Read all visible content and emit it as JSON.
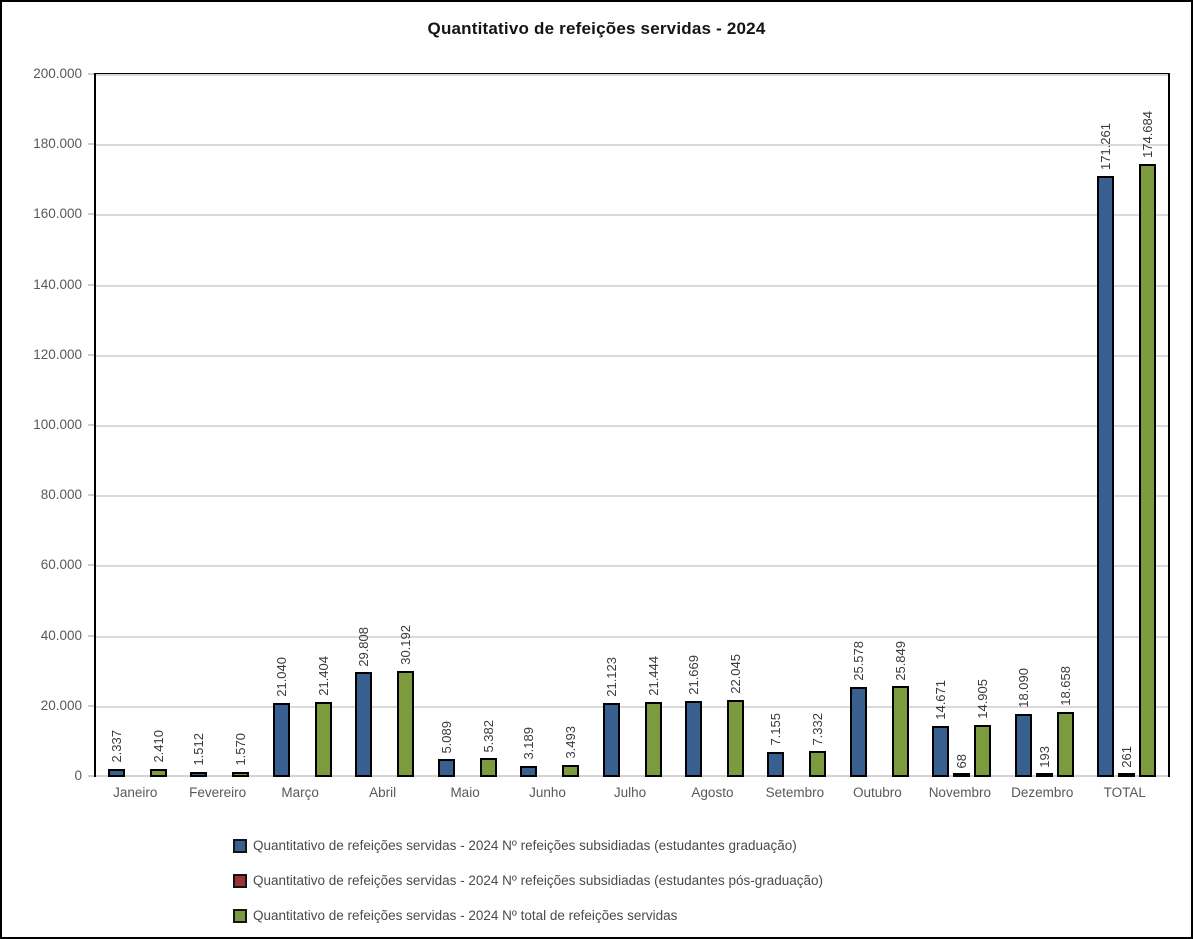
{
  "title": "Quantitativo de refeições servidas - 2024",
  "chart_data": {
    "type": "bar",
    "title": "Quantitativo de refeições servidas - 2024",
    "categories": [
      "Janeiro",
      "Fevereiro",
      "Março",
      "Abril",
      "Maio",
      "Junho",
      "Julho",
      "Agosto",
      "Setembro",
      "Outubro",
      "Novembro",
      "Dezembro",
      "TOTAL"
    ],
    "series": [
      {
        "name": "Quantitativo de refeições servidas - 2024 Nº refeições subsidiadas (estudantes graduação)",
        "key": "refeicoes-subsidiadas-graduacao",
        "color": "#376091",
        "values": [
          2337,
          1512,
          21040,
          29808,
          5089,
          3189,
          21123,
          21669,
          7155,
          25578,
          14671,
          18090,
          171261
        ],
        "labels": [
          "2.337",
          "1.512",
          "21.040",
          "29.808",
          "5.089",
          "3.189",
          "21.123",
          "21.669",
          "7.155",
          "25.578",
          "14.671",
          "18.090",
          "171.261"
        ]
      },
      {
        "name": "Quantitativo de refeições servidas - 2024 Nº refeições subsidiadas (estudantes pós-graduação)",
        "key": "refeicoes-subsidiadas-pos-graduacao",
        "color": "#963634",
        "values": [
          null,
          null,
          null,
          null,
          null,
          null,
          null,
          null,
          null,
          null,
          68,
          193,
          261
        ],
        "labels": [
          "",
          "",
          "",
          "",
          "",
          "",
          "",
          "",
          "",
          "",
          "68",
          "193",
          "261"
        ]
      },
      {
        "name": "Quantitativo de refeições servidas - 2024 Nº total de refeições servidas",
        "key": "total-refeicoes-servidas",
        "color": "#7c9a3e",
        "values": [
          2410,
          1570,
          21404,
          30192,
          5382,
          3493,
          21444,
          22045,
          7332,
          25849,
          14905,
          18658,
          174684
        ],
        "labels": [
          "2.410",
          "1.570",
          "21.404",
          "30.192",
          "5.382",
          "3.493",
          "21.444",
          "22.045",
          "7.332",
          "25.849",
          "14.905",
          "18.658",
          "174.684"
        ]
      }
    ],
    "ylim": [
      0,
      200000
    ],
    "ytick_step": 20000,
    "ytick_labels": [
      "0",
      "20.000",
      "40.000",
      "60.000",
      "80.000",
      "100.000",
      "120.000",
      "140.000",
      "160.000",
      "180.000",
      "200.000"
    ],
    "grid": true,
    "legend_position": "bottom"
  },
  "colors": {
    "grid": "#dadada",
    "axis_text": "#595959",
    "value_label_text": "#3a3a3a",
    "bar_border": "#000000",
    "frame_border": "#000000"
  }
}
